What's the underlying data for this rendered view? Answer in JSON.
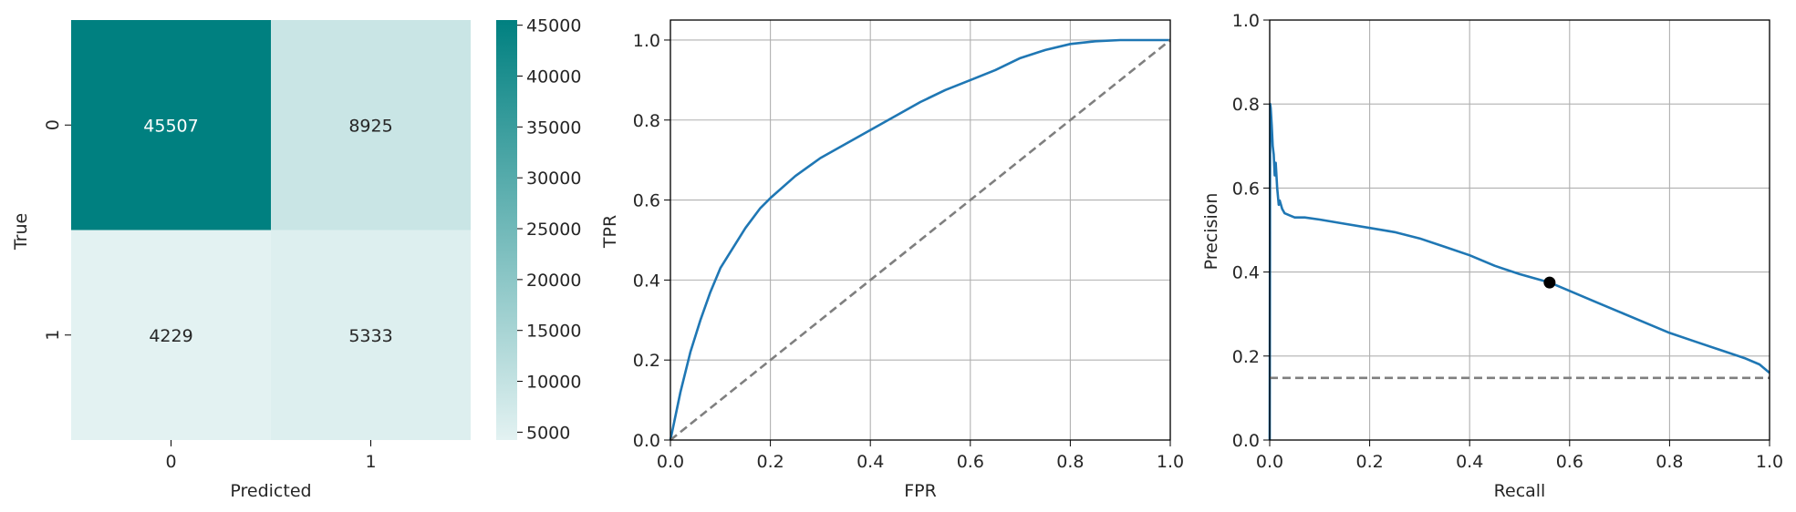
{
  "colors": {
    "heatmap_high": "#008080",
    "heatmap_low": "#e3f2f2",
    "curve": "#1f77b4",
    "baseline": "#7f7f7f",
    "grid": "#b0b0b0",
    "marker": "#000000"
  },
  "chart_data": [
    {
      "type": "heatmap",
      "title": "",
      "xlabel": "Predicted",
      "ylabel": "True",
      "x_categories": [
        "0",
        "1"
      ],
      "y_categories": [
        "0",
        "1"
      ],
      "values": [
        [
          45507,
          8925
        ],
        [
          4229,
          5333
        ]
      ],
      "colorbar": {
        "range": [
          4229,
          45507
        ],
        "ticks": [
          5000,
          10000,
          15000,
          20000,
          25000,
          30000,
          35000,
          40000,
          45000
        ],
        "tick_labels": [
          "5000",
          "10000",
          "15000",
          "20000",
          "25000",
          "30000",
          "35000",
          "40000",
          "45000"
        ]
      }
    },
    {
      "type": "line",
      "title": "",
      "xlabel": "FPR",
      "ylabel": "TPR",
      "xlim": [
        0,
        1
      ],
      "ylim": [
        0,
        1.05
      ],
      "grid": true,
      "xticks": [
        "0.0",
        "0.2",
        "0.4",
        "0.6",
        "0.8",
        "1.0"
      ],
      "yticks": [
        "0.0",
        "0.2",
        "0.4",
        "0.6",
        "0.8",
        "1.0"
      ],
      "series": [
        {
          "style": "solid",
          "color": "#1f77b4",
          "x": [
            0,
            0.01,
            0.02,
            0.04,
            0.06,
            0.08,
            0.1,
            0.12,
            0.15,
            0.18,
            0.2,
            0.25,
            0.3,
            0.35,
            0.4,
            0.45,
            0.5,
            0.55,
            0.6,
            0.65,
            0.7,
            0.75,
            0.8,
            0.85,
            0.9,
            0.95,
            1.0
          ],
          "y": [
            0,
            0.06,
            0.12,
            0.22,
            0.3,
            0.37,
            0.43,
            0.47,
            0.53,
            0.58,
            0.605,
            0.66,
            0.705,
            0.74,
            0.775,
            0.81,
            0.845,
            0.875,
            0.9,
            0.925,
            0.955,
            0.975,
            0.99,
            0.997,
            1.0,
            1.0,
            1.0
          ]
        },
        {
          "style": "dashed",
          "color": "#7f7f7f",
          "x": [
            0,
            1
          ],
          "y": [
            0,
            1
          ]
        }
      ]
    },
    {
      "type": "line",
      "title": "",
      "xlabel": "Recall",
      "ylabel": "Precision",
      "xlim": [
        0,
        1
      ],
      "ylim": [
        0,
        1
      ],
      "grid": true,
      "xticks": [
        "0.0",
        "0.2",
        "0.4",
        "0.6",
        "0.8",
        "1.0"
      ],
      "yticks": [
        "0.0",
        "0.2",
        "0.4",
        "0.6",
        "0.8",
        "1.0"
      ],
      "series": [
        {
          "style": "solid",
          "color": "#1f77b4",
          "x": [
            0.0,
            0.001,
            0.002,
            0.004,
            0.006,
            0.008,
            0.01,
            0.012,
            0.015,
            0.018,
            0.02,
            0.025,
            0.03,
            0.04,
            0.05,
            0.07,
            0.1,
            0.15,
            0.2,
            0.25,
            0.3,
            0.35,
            0.4,
            0.45,
            0.5,
            0.56,
            0.6,
            0.65,
            0.7,
            0.75,
            0.8,
            0.85,
            0.9,
            0.95,
            0.98,
            1.0
          ],
          "y": [
            0.0,
            0.8,
            0.79,
            0.75,
            0.7,
            0.68,
            0.63,
            0.66,
            0.6,
            0.56,
            0.57,
            0.55,
            0.54,
            0.535,
            0.53,
            0.53,
            0.525,
            0.515,
            0.505,
            0.495,
            0.48,
            0.46,
            0.44,
            0.415,
            0.395,
            0.375,
            0.355,
            0.33,
            0.305,
            0.28,
            0.255,
            0.235,
            0.215,
            0.195,
            0.18,
            0.16
          ]
        },
        {
          "style": "dashed",
          "color": "#7f7f7f",
          "x": [
            0,
            1
          ],
          "y": [
            0.148,
            0.148
          ]
        }
      ],
      "points": [
        {
          "x": 0.56,
          "y": 0.375,
          "color": "#000000"
        }
      ]
    }
  ]
}
